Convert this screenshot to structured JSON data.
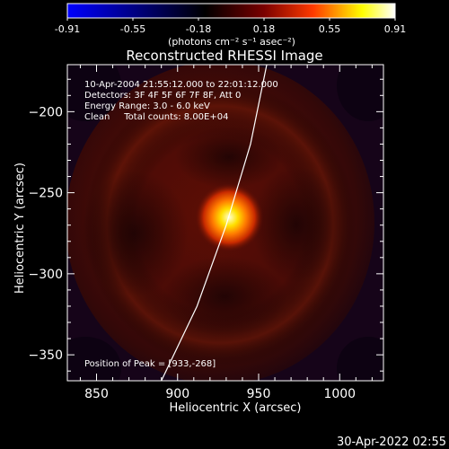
{
  "colorbar": {
    "ticks": [
      "-0.91",
      "-0.55",
      "-0.18",
      "0.18",
      "0.55",
      "0.91"
    ],
    "unit": "(photons cm⁻² s⁻¹ asec⁻²)",
    "colors": [
      "#0000ff",
      "#000000",
      "#7a0000",
      "#ff3a00",
      "#ffff00",
      "#ffffff"
    ]
  },
  "plot": {
    "title": "Reconstructed RHESSI Image",
    "info": [
      "10-Apr-2004 21:55:12.000 to 22:01:12.000",
      "Detectors: 3F 4F 5F 6F 7F 8F, Att 0",
      "Energy Range: 3.0 - 6.0 keV",
      "Clean     Total counts: 8.00E+04"
    ],
    "peak": "Position of Peak = [933,-268]",
    "footer": "30-Apr-2022 02:55"
  },
  "chart_data": {
    "type": "heatmap",
    "title": "Reconstructed RHESSI Image",
    "xlabel": "Heliocentric X (arcsec)",
    "ylabel": "Heliocentric Y (arcsec)",
    "xlim": [
      832,
      1027
    ],
    "ylim": [
      -366,
      -171
    ],
    "x_ticks": [
      850,
      900,
      950,
      1000
    ],
    "y_ticks": [
      -350,
      -300,
      -250,
      -200
    ],
    "x_tick_labels": [
      "850",
      "900",
      "950",
      "1000"
    ],
    "y_tick_labels": [
      "−350",
      "−300",
      "−250",
      "−200"
    ],
    "colorbar_range": [
      -0.91,
      0.91
    ],
    "peak_position": [
      933,
      -268
    ],
    "limb_curve": [
      [
        955,
        -171
      ],
      [
        945,
        -220
      ],
      [
        930,
        -270
      ],
      [
        912,
        -320
      ],
      [
        890,
        -366
      ]
    ],
    "grid": false
  }
}
